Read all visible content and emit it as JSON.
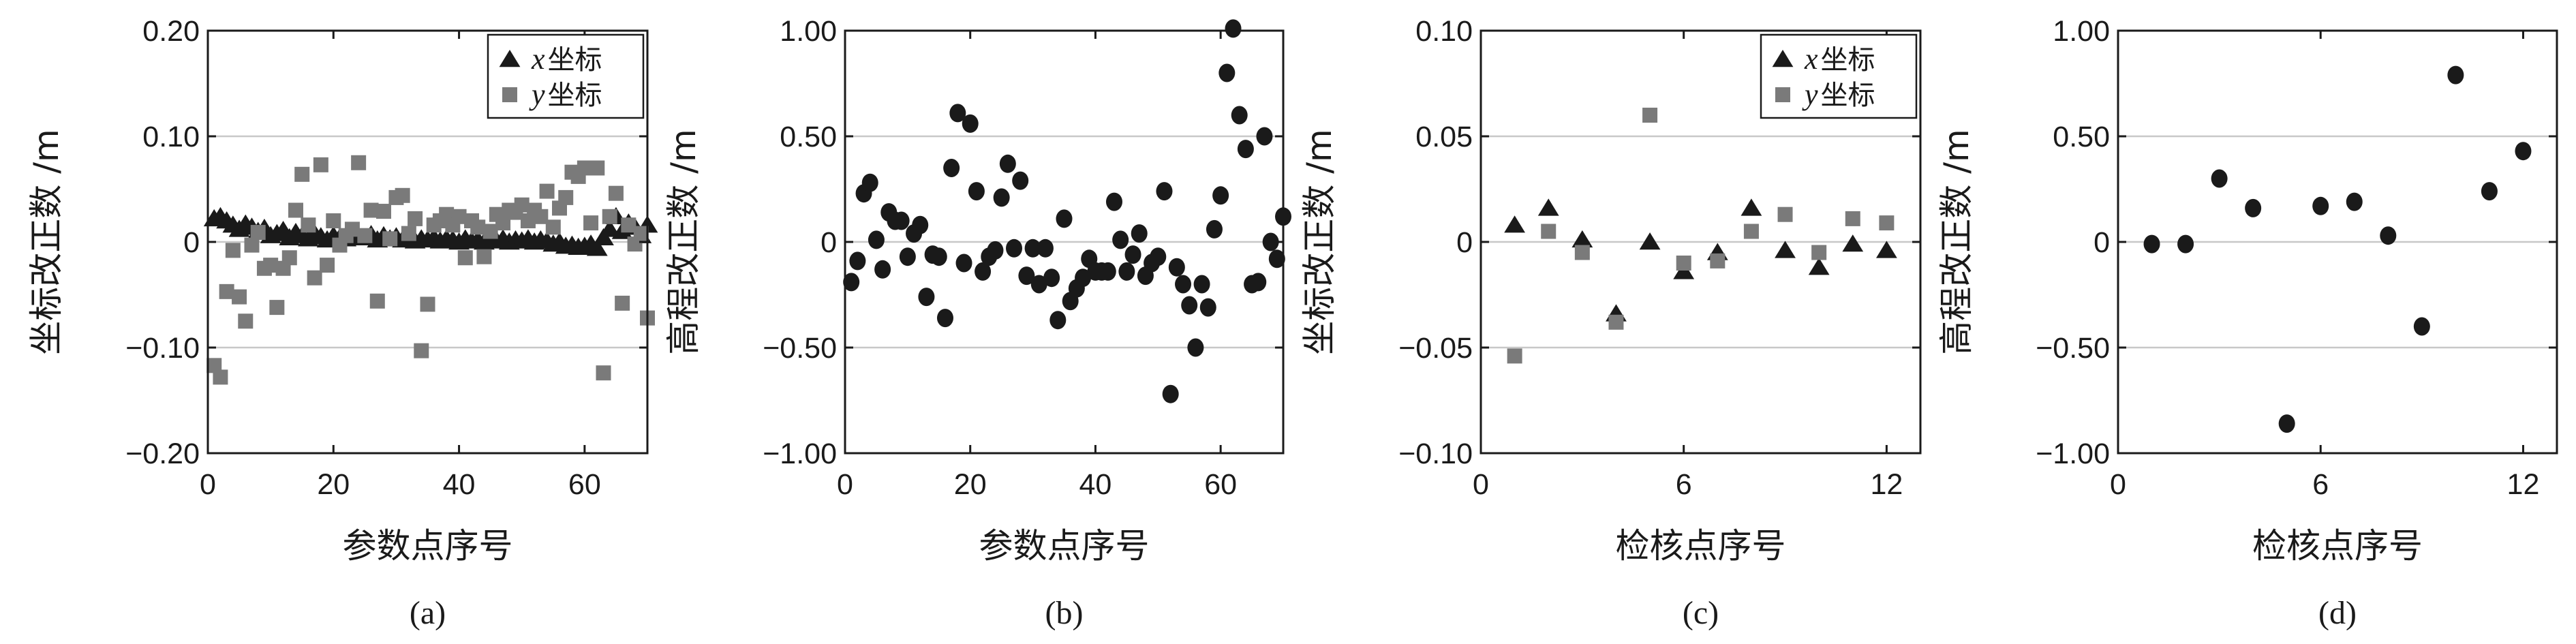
{
  "colors": {
    "x_marker": "#1a1a1a",
    "y_marker": "#7a7a7a",
    "gridline": "#c8c8c8",
    "frame": "#1a1a1a"
  },
  "chart_data": [
    {
      "panel": "(a)",
      "type": "scatter",
      "xlabel": "参数点序号",
      "ylabel": "坐标改正数 /m",
      "xlim": [
        0,
        70
      ],
      "ylim": [
        -0.2,
        0.2
      ],
      "x_ticks": [
        0,
        20,
        40,
        60
      ],
      "x_tick_labels": [
        "0",
        "20",
        "40",
        "60"
      ],
      "y_ticks": [
        -0.2,
        -0.1,
        0,
        0.1,
        0.2
      ],
      "y_tick_labels": [
        "−0.20",
        "−0.10",
        "0",
        "0.10",
        "0.20"
      ],
      "grid": "horizontal",
      "legend": "top-right",
      "series": [
        {
          "name": "坐标",
          "name_prefix": "x",
          "marker": "triangle",
          "x": [
            1,
            2,
            3,
            4,
            5,
            6,
            7,
            8,
            9,
            10,
            11,
            12,
            13,
            14,
            15,
            16,
            17,
            18,
            19,
            20,
            21,
            22,
            23,
            24,
            25,
            26,
            27,
            28,
            29,
            30,
            31,
            32,
            33,
            34,
            35,
            36,
            37,
            38,
            39,
            40,
            41,
            42,
            43,
            44,
            45,
            46,
            47,
            48,
            49,
            50,
            51,
            52,
            53,
            54,
            55,
            56,
            57,
            58,
            59,
            60,
            61,
            62,
            63,
            64,
            65,
            66,
            67,
            68,
            69,
            70
          ],
          "y": [
            0.022,
            0.024,
            0.02,
            0.016,
            0.012,
            0.017,
            0.014,
            0.01,
            0.013,
            0.006,
            0.008,
            0.011,
            0.004,
            0.009,
            0.006,
            0.003,
            0.008,
            0.005,
            0.002,
            0.006,
            0.004,
            0.003,
            0.006,
            0.005,
            0.004,
            0.007,
            0.002,
            0.006,
            0.003,
            0.005,
            0.002,
            0.004,
            0.001,
            0.003,
            0.002,
            0.004,
            0.001,
            0.003,
            0.002,
            0.0,
            0.003,
            0.001,
            0.002,
            0.0,
            0.002,
            0.001,
            0.003,
            0.0,
            0.002,
            0.001,
            0.003,
            0.0,
            0.002,
            0.001,
            -0.002,
            0.0,
            -0.004,
            -0.003,
            -0.005,
            -0.004,
            -0.002,
            -0.006,
            0.004,
            0.012,
            0.024,
            0.01,
            0.018,
            0.014,
            0.006,
            0.016
          ]
        },
        {
          "name": "坐标",
          "name_prefix": "y",
          "marker": "square",
          "x": [
            1,
            2,
            3,
            4,
            5,
            6,
            7,
            8,
            9,
            10,
            11,
            12,
            13,
            14,
            15,
            16,
            17,
            18,
            19,
            20,
            21,
            22,
            23,
            24,
            25,
            26,
            27,
            28,
            29,
            30,
            31,
            32,
            33,
            34,
            35,
            36,
            37,
            38,
            39,
            40,
            41,
            42,
            43,
            44,
            45,
            46,
            47,
            48,
            49,
            50,
            51,
            52,
            53,
            54,
            55,
            56,
            57,
            58,
            59,
            60,
            61,
            62,
            63,
            64,
            65,
            66,
            67,
            68,
            69,
            70
          ],
          "y": [
            -0.117,
            -0.128,
            -0.047,
            -0.008,
            -0.052,
            -0.075,
            -0.003,
            0.009,
            -0.025,
            -0.022,
            -0.062,
            -0.025,
            -0.015,
            0.03,
            0.064,
            0.016,
            -0.034,
            0.073,
            -0.022,
            0.02,
            -0.003,
            0.006,
            0.012,
            0.075,
            0.006,
            0.03,
            -0.056,
            0.029,
            0.003,
            0.042,
            0.044,
            0.008,
            0.022,
            -0.103,
            -0.059,
            0.016,
            0.02,
            0.026,
            0.016,
            0.024,
            -0.015,
            0.02,
            0.014,
            -0.014,
            0.01,
            0.026,
            0.018,
            0.03,
            0.028,
            0.035,
            0.02,
            0.03,
            0.024,
            0.048,
            0.014,
            0.032,
            0.042,
            0.066,
            0.062,
            0.07,
            0.018,
            0.07,
            -0.124,
            0.024,
            0.046,
            -0.058,
            0.016,
            -0.002,
            0.008,
            -0.072
          ]
        }
      ]
    },
    {
      "panel": "(b)",
      "type": "scatter",
      "xlabel": "参数点序号",
      "ylabel": "高程改正数 /m",
      "xlim": [
        0,
        70
      ],
      "ylim": [
        -1.0,
        1.0
      ],
      "x_ticks": [
        0,
        20,
        40,
        60
      ],
      "x_tick_labels": [
        "0",
        "20",
        "40",
        "60"
      ],
      "y_ticks": [
        -1.0,
        -0.5,
        0,
        0.5,
        1.0
      ],
      "y_tick_labels": [
        "−1.00",
        "−0.50",
        "0",
        "0.50",
        "1.00"
      ],
      "grid": "horizontal",
      "series": [
        {
          "marker": "circle",
          "x": [
            1,
            2,
            3,
            4,
            5,
            6,
            7,
            8,
            9,
            10,
            11,
            12,
            13,
            14,
            15,
            16,
            17,
            18,
            19,
            20,
            21,
            22,
            23,
            24,
            25,
            26,
            27,
            28,
            29,
            30,
            31,
            32,
            33,
            34,
            35,
            36,
            37,
            38,
            39,
            40,
            41,
            42,
            43,
            44,
            45,
            46,
            47,
            48,
            49,
            50,
            51,
            52,
            53,
            54,
            55,
            56,
            57,
            58,
            59,
            60,
            61,
            62,
            63,
            64,
            65,
            66,
            67,
            68,
            69,
            70
          ],
          "y": [
            -0.19,
            -0.09,
            0.23,
            0.28,
            0.01,
            -0.13,
            0.14,
            0.1,
            0.1,
            -0.07,
            0.04,
            0.08,
            -0.26,
            -0.06,
            -0.07,
            -0.36,
            0.35,
            0.61,
            -0.1,
            0.56,
            0.24,
            -0.14,
            -0.07,
            -0.04,
            0.21,
            0.37,
            -0.03,
            0.29,
            -0.16,
            -0.03,
            -0.2,
            -0.03,
            -0.17,
            -0.37,
            0.11,
            -0.28,
            -0.22,
            -0.17,
            -0.08,
            -0.14,
            -0.14,
            -0.14,
            0.19,
            0.01,
            -0.14,
            -0.06,
            0.04,
            -0.16,
            -0.1,
            -0.07,
            0.24,
            -0.72,
            -0.12,
            -0.2,
            -0.3,
            -0.5,
            -0.2,
            -0.31,
            0.06,
            0.22,
            0.8,
            1.01,
            0.6,
            0.44,
            -0.2,
            -0.19,
            0.5,
            0.0,
            -0.08,
            0.12
          ]
        }
      ]
    },
    {
      "panel": "(c)",
      "type": "scatter",
      "xlabel": "检核点序号",
      "ylabel": "坐标改正数 /m",
      "xlim": [
        0,
        13
      ],
      "ylim": [
        -0.1,
        0.1
      ],
      "x_ticks": [
        0,
        6,
        12
      ],
      "x_tick_labels": [
        "0",
        "6",
        "12"
      ],
      "y_ticks": [
        -0.1,
        -0.05,
        0,
        0.05,
        0.1
      ],
      "y_tick_labels": [
        "−0.10",
        "−0.05",
        "0",
        "0.05",
        "0.10"
      ],
      "grid": "horizontal",
      "legend": "top-right",
      "series": [
        {
          "name": "坐标",
          "name_prefix": "x",
          "marker": "triangle",
          "x": [
            1,
            2,
            3,
            4,
            5,
            6,
            7,
            8,
            9,
            10,
            11,
            12
          ],
          "y": [
            0.008,
            0.016,
            0.001,
            -0.034,
            0.0,
            -0.014,
            -0.005,
            0.016,
            -0.004,
            -0.012,
            -0.001,
            -0.004
          ]
        },
        {
          "name": "坐标",
          "name_prefix": "y",
          "marker": "square",
          "x": [
            1,
            2,
            3,
            4,
            5,
            6,
            7,
            8,
            9,
            10,
            11,
            12
          ],
          "y": [
            -0.054,
            0.005,
            -0.005,
            -0.038,
            0.06,
            -0.01,
            -0.009,
            0.005,
            0.013,
            -0.005,
            0.011,
            0.009
          ]
        }
      ]
    },
    {
      "panel": "(d)",
      "type": "scatter",
      "xlabel": "检核点序号",
      "ylabel": "高程改正数 /m",
      "xlim": [
        0,
        13
      ],
      "ylim": [
        -1.0,
        1.0
      ],
      "x_ticks": [
        0,
        6,
        12
      ],
      "x_tick_labels": [
        "0",
        "6",
        "12"
      ],
      "y_ticks": [
        -1.0,
        -0.5,
        0,
        0.5,
        1.0
      ],
      "y_tick_labels": [
        "−1.00",
        "−0.50",
        "0",
        "0.50",
        "1.00"
      ],
      "grid": "horizontal",
      "series": [
        {
          "marker": "circle",
          "x": [
            1,
            2,
            3,
            4,
            5,
            6,
            7,
            8,
            9,
            10,
            11,
            12
          ],
          "y": [
            -0.01,
            -0.01,
            0.3,
            0.16,
            -0.86,
            0.17,
            0.19,
            0.03,
            -0.4,
            0.79,
            0.24,
            0.43
          ]
        }
      ]
    }
  ]
}
